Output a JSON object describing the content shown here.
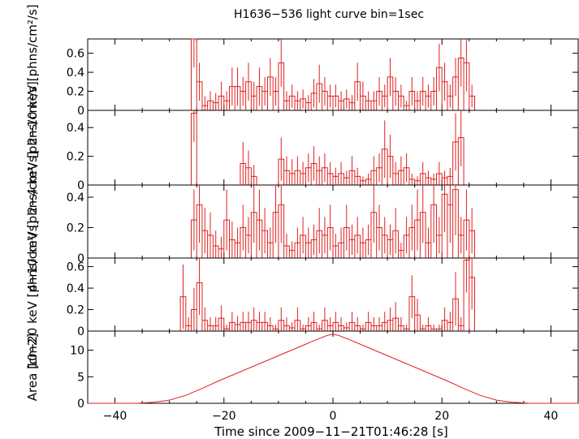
{
  "chart_data": {
    "type": "line",
    "title": "H1636−536 light curve bin=1sec",
    "xlabel": "Time since 2009−11−21T01:46:28 [s]",
    "xlim": [
      -45,
      45
    ],
    "xticks": [
      -40,
      -20,
      0,
      20,
      40
    ],
    "xtick_labels": [
      "−40",
      "−20",
      "0",
      "20",
      "40"
    ],
    "colors": {
      "data": "#e02020",
      "axes": "#000000"
    },
    "panels": [
      {
        "name": "2-10 keV",
        "ylabel": "2−10 keV [phns/cm²/s]",
        "ylim": [
          0,
          0.75
        ],
        "yticks": [
          0,
          0.2,
          0.4,
          0.6
        ],
        "ytick_labels": [
          "0",
          "0.2",
          "0.4",
          "0.6"
        ],
        "bins": {
          "x": [
            -26,
            -25,
            -24,
            -23,
            -22,
            -21,
            -20,
            -19,
            -18,
            -17,
            -16,
            -15,
            -14,
            -13,
            -12,
            -11,
            -10,
            -9,
            -8,
            -7,
            -6,
            -5,
            -4,
            -3,
            -2,
            -1,
            0,
            1,
            2,
            3,
            4,
            5,
            6,
            7,
            8,
            9,
            10,
            11,
            12,
            13,
            14,
            15,
            16,
            17,
            18,
            19,
            20,
            21,
            22,
            23,
            24,
            25
          ],
          "y": [
            0.75,
            0.3,
            0.05,
            0.1,
            0.08,
            0.15,
            0.1,
            0.25,
            0.25,
            0.2,
            0.3,
            0.15,
            0.25,
            0.2,
            0.35,
            0.2,
            0.5,
            0.1,
            0.15,
            0.1,
            0.12,
            0.08,
            0.18,
            0.28,
            0.2,
            0.15,
            0.15,
            0.1,
            0.12,
            0.08,
            0.3,
            0.15,
            0.1,
            0.1,
            0.2,
            0.15,
            0.35,
            0.2,
            0.15,
            0.05,
            0.2,
            0.1,
            0.2,
            0.15,
            0.2,
            0.45,
            0.3,
            0.15,
            0.35,
            0.55,
            0.5,
            0.15
          ],
          "err": [
            0.3,
            0.2,
            0.1,
            0.1,
            0.1,
            0.15,
            0.1,
            0.2,
            0.2,
            0.15,
            0.2,
            0.15,
            0.2,
            0.15,
            0.2,
            0.15,
            0.25,
            0.1,
            0.12,
            0.1,
            0.1,
            0.08,
            0.15,
            0.2,
            0.15,
            0.12,
            0.12,
            0.1,
            0.1,
            0.08,
            0.2,
            0.15,
            0.1,
            0.1,
            0.15,
            0.12,
            0.2,
            0.15,
            0.12,
            0.05,
            0.15,
            0.1,
            0.15,
            0.12,
            0.15,
            0.25,
            0.2,
            0.12,
            0.2,
            0.3,
            0.3,
            0.12
          ]
        }
      },
      {
        "name": "2-4 keV",
        "ylabel": "2−4 keV [phns/cm²/s]",
        "ylim": [
          0,
          0.52
        ],
        "yticks": [
          0,
          0.2,
          0.4
        ],
        "ytick_labels": [
          "0",
          "0.2",
          "0.4"
        ],
        "bins": {
          "x": [
            -26,
            -17,
            -16,
            -15,
            -10,
            -9,
            -8,
            -7,
            -6,
            -5,
            -4,
            -3,
            -2,
            -1,
            0,
            1,
            2,
            3,
            4,
            5,
            6,
            7,
            8,
            9,
            10,
            11,
            12,
            13,
            14,
            15,
            16,
            17,
            18,
            19,
            20,
            21,
            22,
            23
          ],
          "y": [
            0.5,
            0.15,
            0.12,
            0.06,
            0.18,
            0.1,
            0.08,
            0.1,
            0.08,
            0.12,
            0.15,
            0.1,
            0.12,
            0.08,
            0.06,
            0.08,
            0.05,
            0.1,
            0.06,
            0.03,
            0.04,
            0.1,
            0.12,
            0.25,
            0.2,
            0.08,
            0.1,
            0.12,
            0.04,
            0.03,
            0.08,
            0.05,
            0.04,
            0.08,
            0.05,
            0.06,
            0.3,
            0.33
          ],
          "err": [
            0.2,
            0.15,
            0.12,
            0.08,
            0.15,
            0.1,
            0.1,
            0.1,
            0.08,
            0.1,
            0.12,
            0.1,
            0.1,
            0.08,
            0.06,
            0.08,
            0.05,
            0.1,
            0.06,
            0.03,
            0.04,
            0.1,
            0.1,
            0.2,
            0.15,
            0.08,
            0.1,
            0.1,
            0.04,
            0.03,
            0.08,
            0.05,
            0.04,
            0.08,
            0.05,
            0.06,
            0.2,
            0.2
          ]
        }
      },
      {
        "name": "4-10 keV",
        "ylabel": "4−10 keV [phns/cm²/s]",
        "ylim": [
          0,
          0.48
        ],
        "yticks": [
          0,
          0.2,
          0.4
        ],
        "ytick_labels": [
          "0",
          "0.2",
          "0.4"
        ],
        "bins": {
          "x": [
            -26,
            -25,
            -24,
            -23,
            -22,
            -21,
            -20,
            -19,
            -18,
            -17,
            -16,
            -15,
            -14,
            -13,
            -12,
            -11,
            -10,
            -9,
            -8,
            -7,
            -6,
            -5,
            -4,
            -3,
            -2,
            -1,
            0,
            1,
            2,
            3,
            4,
            5,
            6,
            7,
            8,
            9,
            10,
            11,
            12,
            13,
            14,
            15,
            16,
            17,
            18,
            19,
            20,
            21,
            22,
            23,
            24,
            25
          ],
          "y": [
            0.25,
            0.35,
            0.18,
            0.15,
            0.08,
            0.06,
            0.25,
            0.12,
            0.1,
            0.2,
            0.15,
            0.3,
            0.25,
            0.18,
            0.1,
            0.3,
            0.35,
            0.08,
            0.05,
            0.1,
            0.15,
            0.1,
            0.12,
            0.18,
            0.15,
            0.2,
            0.08,
            0.1,
            0.2,
            0.12,
            0.15,
            0.1,
            0.12,
            0.3,
            0.2,
            0.15,
            0.12,
            0.18,
            0.05,
            0.15,
            0.2,
            0.25,
            0.3,
            0.1,
            0.35,
            0.15,
            0.42,
            0.35,
            0.45,
            0.15,
            0.25,
            0.18
          ],
          "err": [
            0.2,
            0.25,
            0.15,
            0.15,
            0.1,
            0.08,
            0.2,
            0.12,
            0.1,
            0.15,
            0.12,
            0.2,
            0.2,
            0.15,
            0.1,
            0.2,
            0.25,
            0.08,
            0.06,
            0.1,
            0.12,
            0.1,
            0.1,
            0.15,
            0.12,
            0.15,
            0.08,
            0.1,
            0.15,
            0.1,
            0.12,
            0.1,
            0.1,
            0.2,
            0.15,
            0.12,
            0.1,
            0.15,
            0.05,
            0.12,
            0.15,
            0.2,
            0.2,
            0.1,
            0.25,
            0.12,
            0.25,
            0.25,
            0.3,
            0.12,
            0.2,
            0.15
          ]
        }
      },
      {
        "name": "10-20 keV",
        "ylabel": "10−20 keV [phns/cm²/s]",
        "ylim": [
          0,
          0.68
        ],
        "yticks": [
          0,
          0.2,
          0.4,
          0.6
        ],
        "ytick_labels": [
          "0",
          "0.2",
          "0.4",
          "0.6"
        ],
        "bins": {
          "x": [
            -28,
            -27,
            -26,
            -25,
            -24,
            -23,
            -22,
            -21,
            -20,
            -19,
            -18,
            -17,
            -16,
            -15,
            -14,
            -13,
            -12,
            -11,
            -10,
            -9,
            -8,
            -7,
            -6,
            -5,
            -4,
            -3,
            -2,
            -1,
            0,
            1,
            2,
            3,
            4,
            5,
            6,
            7,
            8,
            9,
            10,
            11,
            12,
            13,
            14,
            15,
            16,
            17,
            18,
            19,
            20,
            21,
            22,
            23,
            24,
            25
          ],
          "y": [
            0.32,
            0.05,
            0.2,
            0.45,
            0.1,
            0.05,
            0.05,
            0.12,
            0.02,
            0.08,
            0.06,
            0.08,
            0.08,
            0.1,
            0.08,
            0.08,
            0.05,
            0.02,
            0.1,
            0.05,
            0.03,
            0.1,
            0.02,
            0.05,
            0.08,
            0.02,
            0.1,
            0.05,
            0.08,
            0.05,
            0.03,
            0.08,
            0.05,
            0.02,
            0.08,
            0.05,
            0.05,
            0.08,
            0.1,
            0.12,
            0.05,
            0.02,
            0.32,
            0.15,
            0.02,
            0.05,
            0.02,
            0.02,
            0.1,
            0.08,
            0.3,
            0.05,
            0.66,
            0.5
          ],
          "err": [
            0.3,
            0.08,
            0.2,
            0.3,
            0.12,
            0.08,
            0.08,
            0.12,
            0.04,
            0.1,
            0.08,
            0.1,
            0.1,
            0.12,
            0.1,
            0.1,
            0.08,
            0.04,
            0.12,
            0.08,
            0.05,
            0.12,
            0.04,
            0.08,
            0.1,
            0.04,
            0.12,
            0.08,
            0.1,
            0.08,
            0.05,
            0.1,
            0.08,
            0.04,
            0.1,
            0.08,
            0.08,
            0.1,
            0.12,
            0.15,
            0.08,
            0.04,
            0.2,
            0.15,
            0.04,
            0.08,
            0.04,
            0.04,
            0.12,
            0.1,
            0.25,
            0.08,
            0.3,
            0.3
          ]
        }
      },
      {
        "name": "Area",
        "ylabel": "Area [cm2]",
        "ylim": [
          0,
          13.6
        ],
        "yticks": [
          0,
          5,
          10
        ],
        "ytick_labels": [
          "0",
          "5",
          "10"
        ],
        "curve": {
          "x": [
            -45,
            -36,
            -33,
            -30,
            -27,
            -24,
            -21,
            -18,
            -15,
            -12,
            -9,
            -6,
            -3,
            -1,
            0,
            1,
            3,
            6,
            9,
            12,
            15,
            18,
            21,
            24,
            27,
            30,
            33,
            36,
            45
          ],
          "y": [
            0,
            0,
            0.2,
            0.6,
            1.5,
            2.8,
            4.2,
            5.5,
            6.8,
            8.1,
            9.4,
            10.7,
            12,
            12.8,
            13.0,
            12.8,
            12,
            10.7,
            9.4,
            8.1,
            6.8,
            5.5,
            4.2,
            2.8,
            1.5,
            0.6,
            0.2,
            0,
            0
          ]
        }
      }
    ]
  }
}
